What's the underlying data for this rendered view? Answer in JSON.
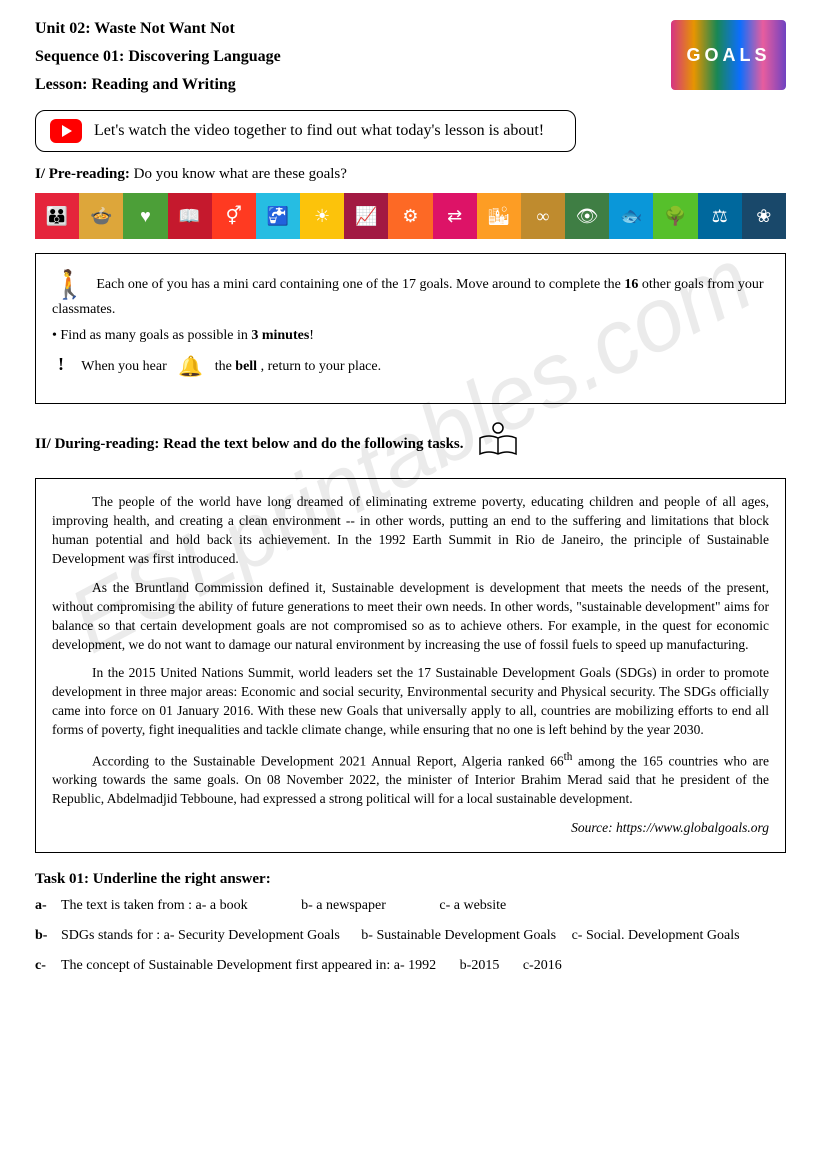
{
  "watermark": "ESLprintables.com",
  "header": {
    "unit": "Unit 02: Waste Not Want Not",
    "sequence": "Sequence 01: Discovering Language",
    "lesson": "Lesson: Reading and Writing",
    "logo_text": "GOALS"
  },
  "video": {
    "text": "Let's watch the video together to find out what today's lesson is about!"
  },
  "pre_reading": {
    "label": "I/ Pre-reading:",
    "question": " Do you know what are these goals?"
  },
  "sdg_strip": {
    "colors": [
      "#e5243b",
      "#dda63a",
      "#4c9f38",
      "#c5192d",
      "#ff3a21",
      "#26bde2",
      "#fcc30b",
      "#a21942",
      "#fd6925",
      "#dd1367",
      "#fd9d24",
      "#bf8b2e",
      "#3f7e44",
      "#0a97d9",
      "#56c02b",
      "#00689d",
      "#19486a"
    ],
    "glyphs": [
      "👪",
      "🍲",
      "♥",
      "📖",
      "⚥",
      "🚰",
      "☀",
      "📈",
      "⚙",
      "⇄",
      "🏙",
      "∞",
      "👁",
      "🐟",
      "🌳",
      "⚖",
      "❀"
    ]
  },
  "activity": {
    "line1a": "Each one of you has a mini card containing one of the 17 goals. Move around to complete the ",
    "line1b": "16",
    "line1c": " other goals from your classmates.",
    "line2a": "• Find as many goals as possible in ",
    "line2b": "3 minutes",
    "line2c": "!",
    "line3a": "When you hear",
    "line3b": "the ",
    "line3c": "bell",
    "line3d": " , return to your place."
  },
  "during": {
    "label": "II/ During-reading:",
    "instruction": " Read the text below and do the following tasks."
  },
  "reading": {
    "p1": "The people of the world have long dreamed of eliminating extreme poverty, educating children and people of all ages, improving health, and creating a clean environment -- in other words, putting an end to the suffering and limitations that block human potential and hold back its achievement. In the 1992 Earth Summit in Rio de Janeiro, the principle of Sustainable Development was first introduced.",
    "p2": "As the Bruntland Commission defined it, Sustainable development is development that meets the needs of the present, without compromising the ability of future generations to meet their own needs. In other words, \"sustainable development\" aims for balance so that certain development goals are not compromised so as to achieve others.  For example, in the quest for economic development, we do not want to damage our natural environment by increasing the use of fossil fuels to speed up manufacturing.",
    "p3": "In the 2015 United Nations Summit, world leaders set the 17 Sustainable Development Goals (SDGs) in order to promote development in three major areas: Economic and social security, Environmental security and Physical security. The SDGs officially came into force on 01 January 2016. With these new Goals that universally apply to all, countries are mobilizing efforts to end all forms of poverty, fight inequalities and tackle climate change, while ensuring that no one is left behind by the year 2030.",
    "p4a": "According to the Sustainable Development 2021 Annual Report, Algeria ranked 66",
    "p4b": " among the 165 countries who are working towards the same goals. On 08 November 2022, the minister of Interior Brahim Merad said that he president of the Republic, Abdelmadjid Tebboune, had expressed a strong political will for a local sustainable development.",
    "source": "Source: https://www.globalgoals.org"
  },
  "task1": {
    "title": "Task 01: Underline the right answer:",
    "a": {
      "letter": "a-",
      "stem": "The text is taken from :  ",
      "o1": "a- a book",
      "o2": "b- a newspaper",
      "o3": "c- a website"
    },
    "b": {
      "letter": "b-",
      "stem": "SDGs stands for :  ",
      "o1": "a- Security Development Goals",
      "o2": "b- Sustainable Development Goals",
      "o3": "c- Social. Development Goals"
    },
    "c": {
      "letter": "c-",
      "stem": "The concept of Sustainable Development first appeared in:      ",
      "o1": "a- 1992",
      "o2": "b-2015",
      "o3": "c-2016"
    }
  }
}
